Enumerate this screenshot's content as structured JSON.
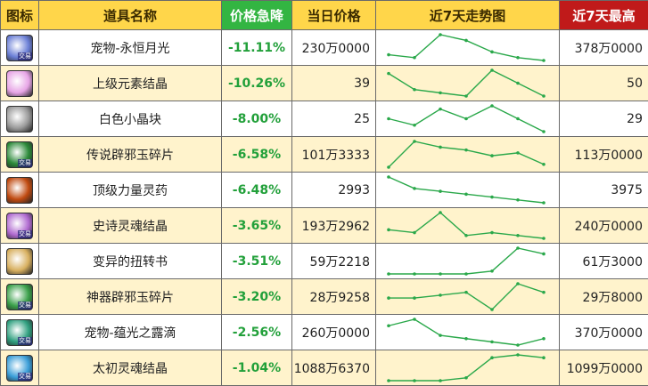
{
  "headers": {
    "icon": "图标",
    "name": "道具名称",
    "drop": "价格急降",
    "price": "当日价格",
    "trend": "近7天走势图",
    "max": "近7天最高"
  },
  "colors": {
    "header_bg": "#ffd64a",
    "drop_header_bg": "#33b542",
    "max_header_bg": "#c01a1a",
    "drop_text": "#22a03a",
    "spark_line": "#2aa84a",
    "row_alt_bg": "#fff3cc"
  },
  "rows": [
    {
      "icon": "pet-moon-icon",
      "icon_color": "#6b7fd6",
      "tag": "交易",
      "name": "宠物-永恒月光",
      "drop": "-11.11%",
      "price": "230万0000",
      "max": "378万0000",
      "trend": [
        2,
        1,
        9,
        7,
        3,
        1,
        0
      ]
    },
    {
      "icon": "pink-crystal-icon",
      "icon_color": "#e7a5e6",
      "tag": "",
      "name": "上级元素结晶",
      "drop": "-10.26%",
      "price": "39",
      "max": "50",
      "trend": [
        8,
        3,
        2,
        1,
        9,
        5,
        1
      ]
    },
    {
      "icon": "white-cube-icon",
      "icon_color": "#9a9a9a",
      "tag": "",
      "name": "白色小晶块",
      "drop": "-8.00%",
      "price": "25",
      "max": "29",
      "trend": [
        5,
        3,
        8,
        5,
        9,
        5,
        1
      ]
    },
    {
      "icon": "green-jade-icon",
      "icon_color": "#2c8a3a",
      "tag": "交易",
      "name": "传说辟邪玉碎片",
      "drop": "-6.58%",
      "price": "101万3333",
      "max": "113万0000",
      "trend": [
        0,
        9,
        7,
        6,
        4,
        5,
        1
      ]
    },
    {
      "icon": "power-potion-icon",
      "icon_color": "#c04a10",
      "tag": "",
      "name": "顶级力量灵药",
      "drop": "-6.48%",
      "price": "2993",
      "max": "3975",
      "trend": [
        9,
        5,
        4,
        3,
        2,
        1,
        0
      ]
    },
    {
      "icon": "purple-soul-icon",
      "icon_color": "#b06ad0",
      "tag": "交易",
      "name": "史诗灵魂结晶",
      "drop": "-3.65%",
      "price": "193万2962",
      "max": "240万0000",
      "trend": [
        3,
        2,
        9,
        1,
        2,
        1,
        0
      ]
    },
    {
      "icon": "scroll-book-icon",
      "icon_color": "#d8b060",
      "tag": "",
      "name": "变异的扭转书",
      "drop": "-3.51%",
      "price": "59万2218",
      "max": "61万3000",
      "trend": [
        0,
        0,
        0,
        0,
        1,
        9,
        7
      ]
    },
    {
      "icon": "artifact-jade-icon",
      "icon_color": "#3aa04a",
      "tag": "交易",
      "name": "神器辟邪玉碎片",
      "drop": "-3.20%",
      "price": "28万9258",
      "max": "29万8000",
      "trend": [
        4,
        4,
        5,
        6,
        0,
        9,
        6
      ]
    },
    {
      "icon": "pet-dew-icon",
      "icon_color": "#30a080",
      "tag": "交易",
      "name": "宠物-蕴光之露滴",
      "drop": "-2.56%",
      "price": "260万0000",
      "max": "370万0000",
      "trend": [
        7,
        9,
        4,
        3,
        2,
        1,
        3
      ]
    },
    {
      "icon": "origin-soul-icon",
      "icon_color": "#3a9ed8",
      "tag": "交易",
      "name": "太初灵魂结晶",
      "drop": "-1.04%",
      "price": "1088万6370",
      "max": "1099万0000",
      "trend": [
        0,
        0,
        0,
        1,
        8,
        9,
        8
      ]
    }
  ]
}
